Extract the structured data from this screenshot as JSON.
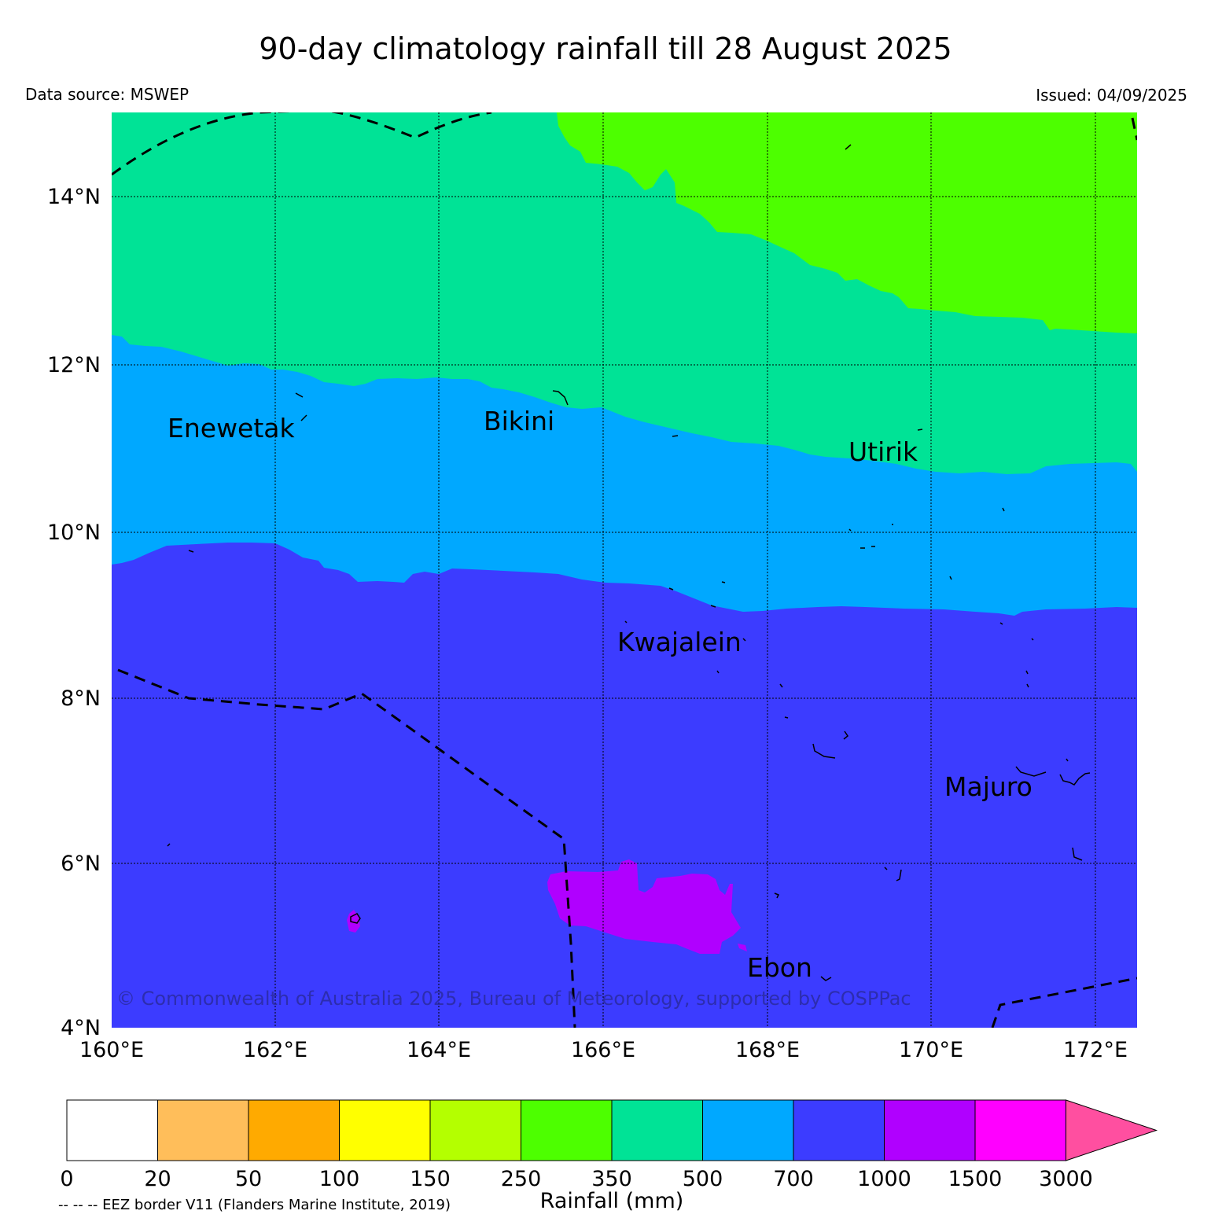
{
  "header": {
    "title": "90-day climatology rainfall till 28 August 2025",
    "source": "Data source: MSWEP",
    "issued": "Issued: 04/09/2025"
  },
  "map": {
    "lat_labels": [
      "14°N",
      "12°N",
      "10°N",
      "8°N",
      "6°N",
      "4°N"
    ],
    "lon_labels": [
      "160°E",
      "162°E",
      "164°E",
      "166°E",
      "168°E",
      "170°E",
      "172°E"
    ],
    "places": {
      "enewetak": "Enewetak",
      "bikini": "Bikini",
      "utirik": "Utirik",
      "kwajalein": "Kwajalein",
      "majuro": "Majuro",
      "ebon": "Ebon"
    },
    "copyright": "© Commonwealth of Australia 2025, Bureau of Meteorology, supported by COSPPac",
    "colors": {
      "c350_500": "#00e396",
      "c250_350": "#4dff00",
      "c500_700": "#00a8ff",
      "c700_1000": "#3c3cff",
      "c1000_1500": "#b000ff"
    }
  },
  "colorbar": {
    "label": "Rainfall (mm)",
    "ticks": [
      "0",
      "20",
      "50",
      "100",
      "150",
      "250",
      "350",
      "500",
      "700",
      "1000",
      "1500",
      "3000"
    ],
    "colors": [
      "#ffffff",
      "#ffbe5a",
      "#ffaa00",
      "#ffff00",
      "#b4ff00",
      "#4dff00",
      "#00e396",
      "#00a8ff",
      "#3c3cff",
      "#b000ff",
      "#ff00ff"
    ],
    "extend_color": "#ff4fa0"
  },
  "legend_note": "-- -- -- EEZ border V11 (Flanders Marine Institute, 2019)"
}
